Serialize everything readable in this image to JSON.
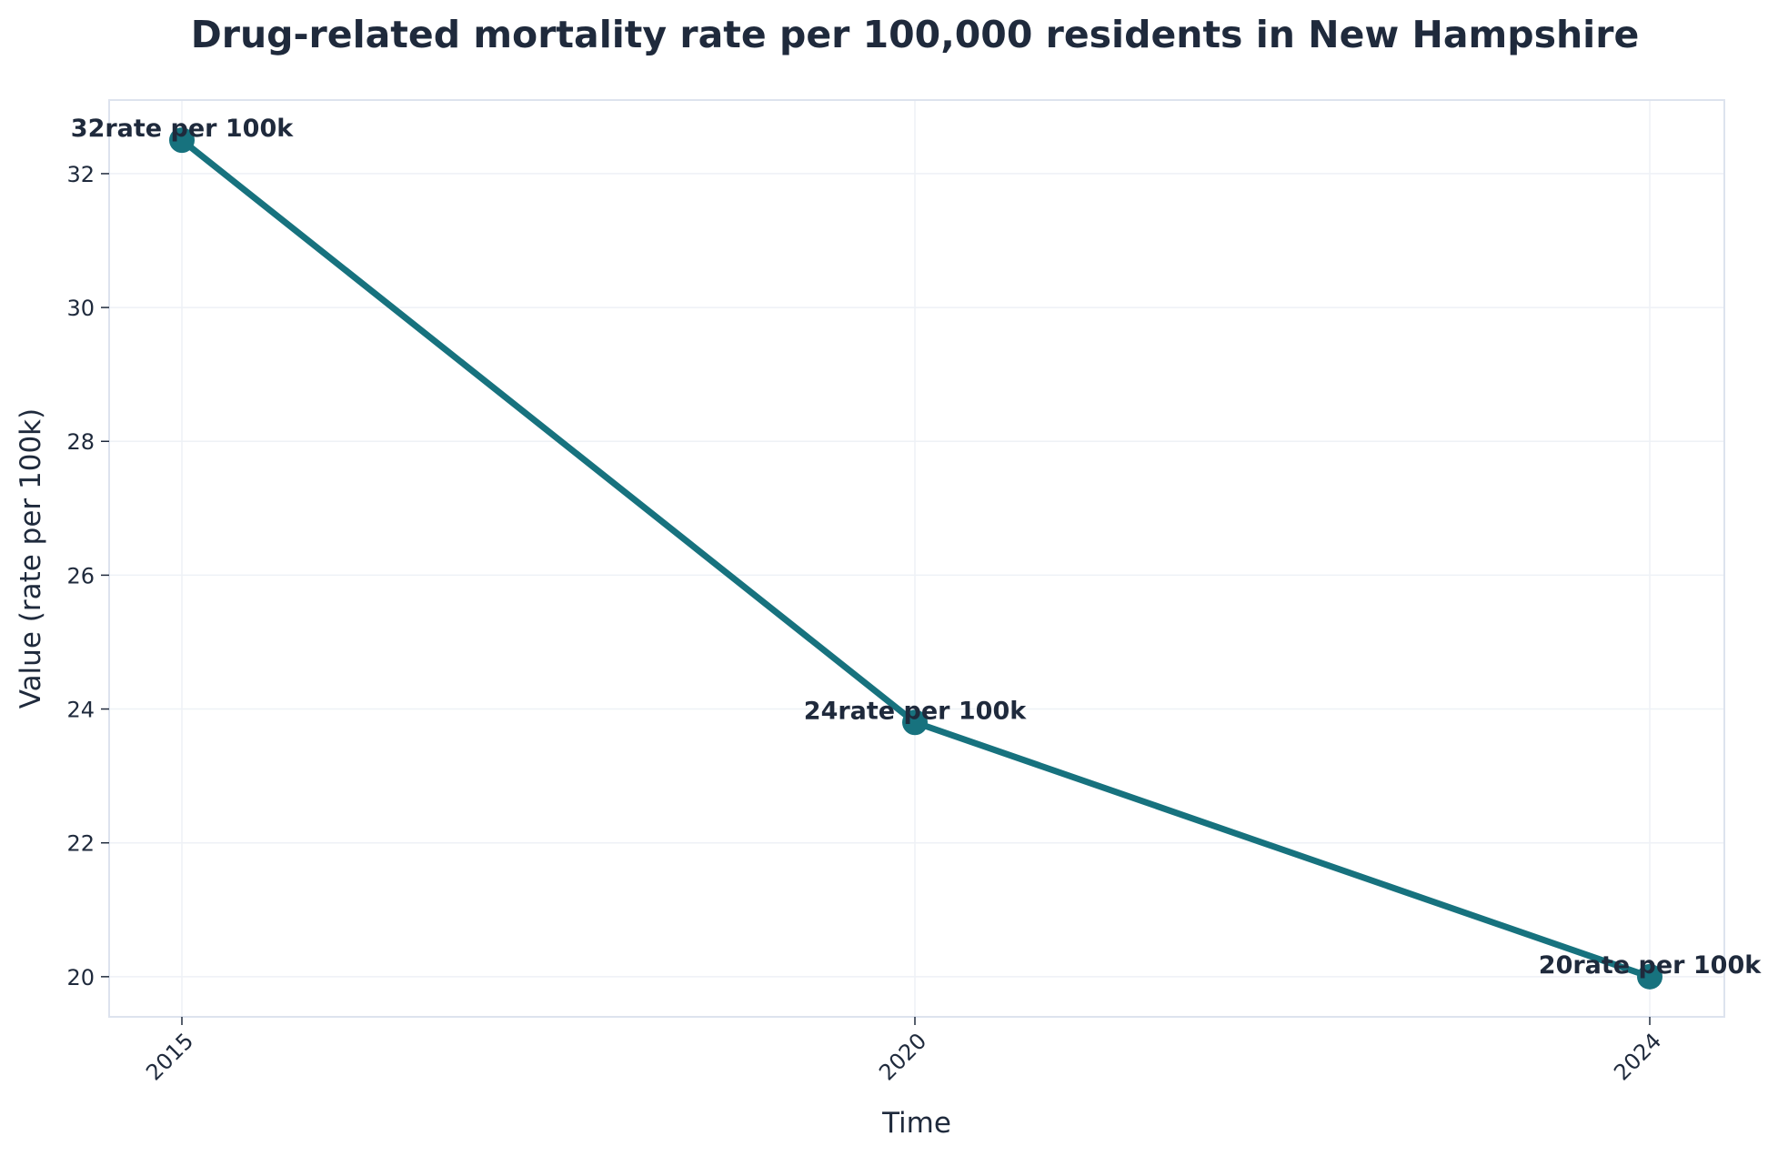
{
  "chart_data": {
    "type": "line",
    "title": "Drug-related mortality rate per 100,000 residents in New Hampshire",
    "xlabel": "Time",
    "ylabel": "Value (rate per 100k)",
    "x": [
      "2015",
      "2020",
      "2024"
    ],
    "x_ticks": [
      "2015",
      "2020",
      "2024"
    ],
    "series": [
      {
        "values": [
          32.5,
          23.8,
          20.0
        ],
        "point_labels": [
          "32rate per 100k",
          "24rate per 100k",
          "20rate per 100k"
        ],
        "color": "#17727e"
      }
    ],
    "y_ticks": [
      20,
      22,
      24,
      26,
      28,
      30,
      32
    ],
    "ylim": [
      19.4,
      33.1
    ],
    "grid": true,
    "legend": "none",
    "colors": {
      "text": "#1f2a3c",
      "frame": "#dde3ee",
      "grid": "#eef1f6"
    }
  }
}
